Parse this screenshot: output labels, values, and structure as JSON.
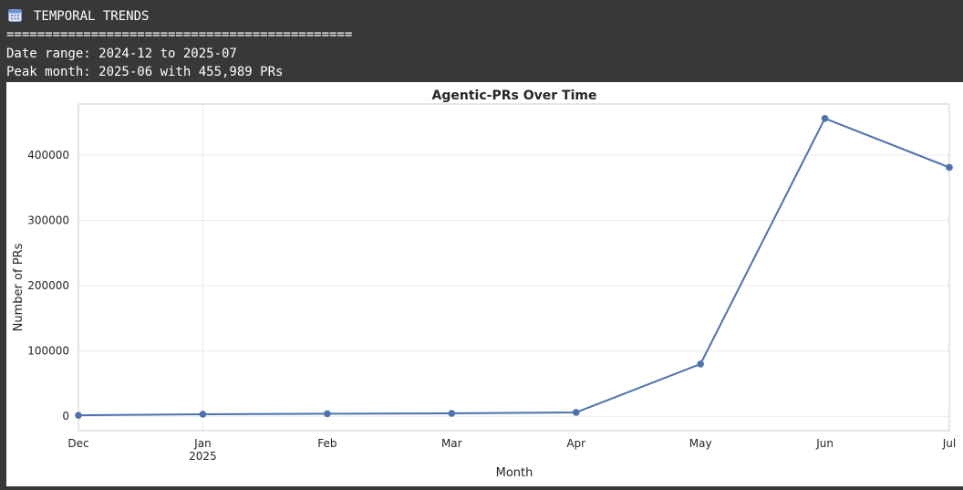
{
  "console": {
    "heading": "TEMPORAL TRENDS",
    "heading_icon": "calendar-icon",
    "rule": "=============================================",
    "date_range_line": "Date range: 2024-12 to 2025-07",
    "peak_line": "Peak month: 2025-06 with 455,989 PRs"
  },
  "colors": {
    "line": "#4c72b0",
    "console_bg": "#383838",
    "console_text": "#ffffff"
  },
  "chart_data": {
    "type": "line",
    "title": "Agentic-PRs Over Time",
    "xlabel": "Month",
    "ylabel": "Number of PRs",
    "x": [
      "2024-12",
      "2025-01",
      "2025-02",
      "2025-03",
      "2025-04",
      "2025-05",
      "2025-06",
      "2025-07"
    ],
    "x_tick_labels": [
      "Dec",
      "Jan",
      "Feb",
      "Mar",
      "Apr",
      "May",
      "Jun",
      "Jul"
    ],
    "x_tick_sublabel": {
      "index": 1,
      "text": "2025"
    },
    "series": [
      {
        "values": [
          1500,
          3200,
          4000,
          4500,
          6000,
          80000,
          455989,
          381000
        ]
      }
    ],
    "yticks": [
      0,
      100000,
      200000,
      300000,
      400000
    ],
    "ylim": [
      -22000,
      478000
    ],
    "grid": true,
    "marker": "circle"
  }
}
